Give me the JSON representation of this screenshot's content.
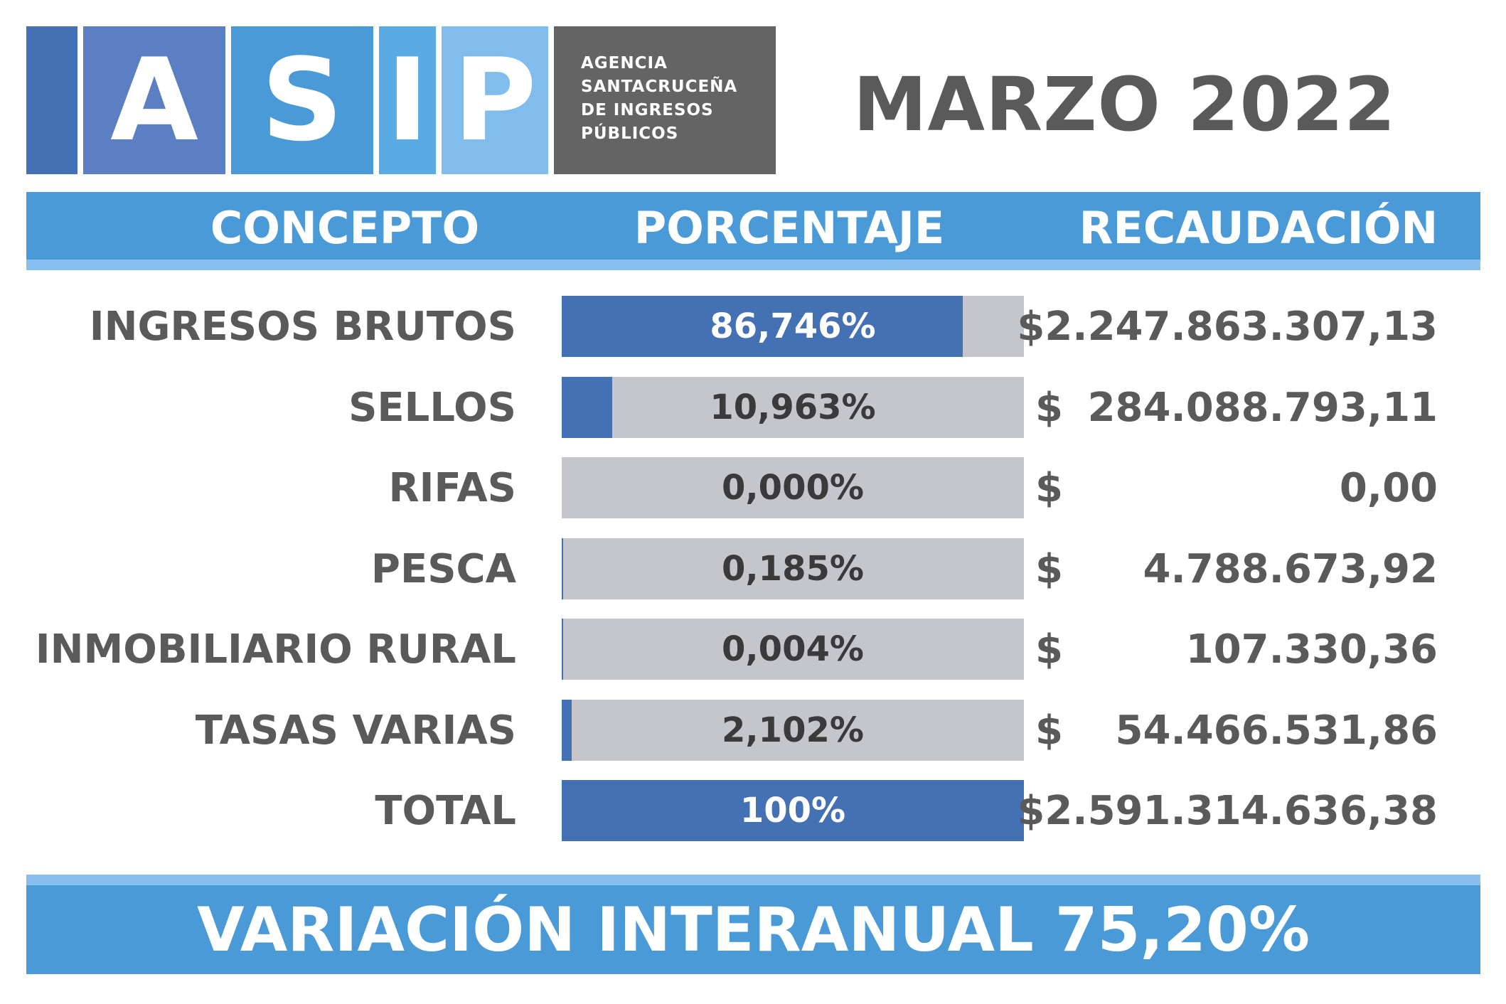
{
  "logo": {
    "letters": [
      "A",
      "S",
      "I",
      "P"
    ],
    "agency_lines": [
      "AGENCIA",
      "SANTACRUCEÑA",
      "DE INGRESOS",
      "PÚBLICOS"
    ]
  },
  "title": "MARZO 2022",
  "columns": {
    "concept": "CONCEPTO",
    "percentage": "PORCENTAJE",
    "collection": "RECAUDACIÓN"
  },
  "rows": [
    {
      "label": "INGRESOS BRUTOS",
      "pct_label": "86,746%",
      "pct": 86.746,
      "amount_prefix": "",
      "amount": "$2.247.863.307,13"
    },
    {
      "label": "SELLOS",
      "pct_label": "10,963%",
      "pct": 10.963,
      "amount_prefix": "$",
      "amount": "284.088.793,11"
    },
    {
      "label": "RIFAS",
      "pct_label": "0,000%",
      "pct": 0.0,
      "amount_prefix": "$",
      "amount": "0,00"
    },
    {
      "label": "PESCA",
      "pct_label": "0,185%",
      "pct": 0.185,
      "amount_prefix": "$",
      "amount": "4.788.673,92"
    },
    {
      "label": "INMOBILIARIO RURAL",
      "pct_label": "0,004%",
      "pct": 0.004,
      "amount_prefix": "$",
      "amount": "107.330,36"
    },
    {
      "label": "TASAS VARIAS",
      "pct_label": "2,102%",
      "pct": 2.102,
      "amount_prefix": "$",
      "amount": "54.466.531,86"
    },
    {
      "label": "TOTAL",
      "pct_label": "100%",
      "pct": 100,
      "amount_prefix": "",
      "amount": "$2.591.314.636,38"
    }
  ],
  "footer": "VARIACIÓN INTERANUAL 75,20%",
  "colors": {
    "bar_fill": "#4470b4",
    "bar_track": "#c5c6cb",
    "band": "#4a9ad8",
    "text_gray": "#5a5a5a"
  },
  "chart_data": {
    "type": "bar",
    "title": "MARZO 2022",
    "categories": [
      "INGRESOS BRUTOS",
      "SELLOS",
      "RIFAS",
      "PESCA",
      "INMOBILIARIO RURAL",
      "TASAS VARIAS",
      "TOTAL"
    ],
    "series": [
      {
        "values": [
          86.746,
          10.963,
          0.0,
          0.185,
          0.004,
          2.102,
          100
        ]
      }
    ],
    "amounts": [
      "$2.247.863.307,13",
      "$ 284.088.793,11",
      "$ 0,00",
      "$ 4.788.673,92",
      "$ 107.330,36",
      "$ 54.466.531,86",
      "$2.591.314.636,38"
    ],
    "xlim": [
      0,
      100
    ],
    "orientation": "horizontal",
    "grid": false
  }
}
